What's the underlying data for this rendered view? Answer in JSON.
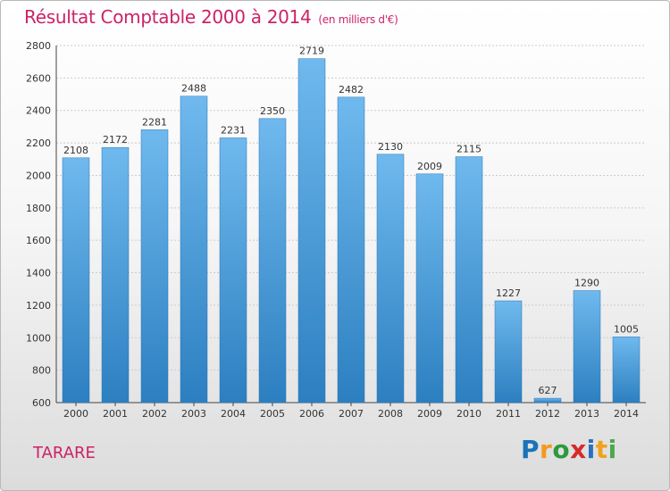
{
  "title": {
    "main": "Résultat Comptable 2000 à 2014",
    "unit": "(en milliers d'€)"
  },
  "location": "TARARE",
  "logo": {
    "letters": [
      "P",
      "r",
      "o",
      "x",
      "i",
      "t",
      "i"
    ],
    "colors": [
      "#1a73b8",
      "#f39a1e",
      "#2c9a3a",
      "#d62a2a",
      "#2b6fc0",
      "#f0a21e",
      "#4aa84b"
    ]
  },
  "colors": {
    "bar_top": "#6fb9ee",
    "bar_bottom": "#2c7fc0",
    "text": "#333333",
    "grid": "#cccccc",
    "accent": "#cc2266"
  },
  "chart_data": {
    "type": "bar",
    "title": "Résultat Comptable 2000 à 2014 (en milliers d'€)",
    "xlabel": "",
    "ylabel": "",
    "categories": [
      "2000",
      "2001",
      "2002",
      "2003",
      "2004",
      "2005",
      "2006",
      "2007",
      "2008",
      "2009",
      "2010",
      "2011",
      "2012",
      "2013",
      "2014"
    ],
    "values": [
      2108,
      2172,
      2281,
      2488,
      2231,
      2350,
      2719,
      2482,
      2130,
      2009,
      2115,
      1227,
      627,
      1290,
      1005
    ],
    "ylim": [
      600,
      2800
    ],
    "yticks": [
      600,
      800,
      1000,
      1200,
      1400,
      1600,
      1800,
      2000,
      2200,
      2400,
      2600,
      2800
    ],
    "grid": true
  }
}
